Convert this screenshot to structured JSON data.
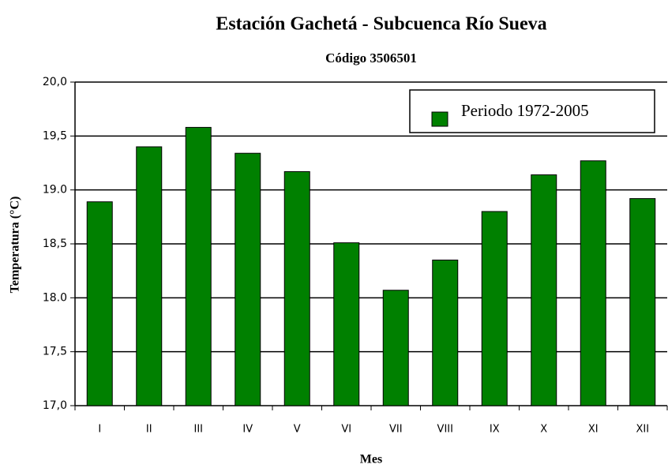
{
  "chart_data": {
    "type": "bar",
    "title": "Estación Gachetá - Subcuenca Río Sueva",
    "subtitle": "Código 3506501",
    "x_label": "Mes",
    "y_label": "Temperatura (°C)",
    "categories": [
      "I",
      "II",
      "III",
      "IV",
      "V",
      "VI",
      "VII",
      "VIII",
      "IX",
      "X",
      "XI",
      "XII"
    ],
    "series": [
      {
        "name": "Periodo 1972-2005",
        "color": "#008000",
        "values": [
          18.89,
          19.4,
          19.58,
          19.34,
          19.17,
          18.51,
          18.07,
          18.35,
          18.8,
          19.14,
          19.27,
          18.92
        ]
      }
    ],
    "ylim": [
      17.0,
      20.0
    ],
    "yticks": [
      {
        "value": 17.0,
        "label": "17,0"
      },
      {
        "value": 17.5,
        "label": "17,5"
      },
      {
        "value": 18.0,
        "label": "18.0"
      },
      {
        "value": 18.5,
        "label": "18,5"
      },
      {
        "value": 19.0,
        "label": "19.0"
      },
      {
        "value": 19.5,
        "label": "19,5"
      },
      {
        "value": 20.0,
        "label": "20,0"
      }
    ],
    "grid": true,
    "legend": "upper right"
  }
}
